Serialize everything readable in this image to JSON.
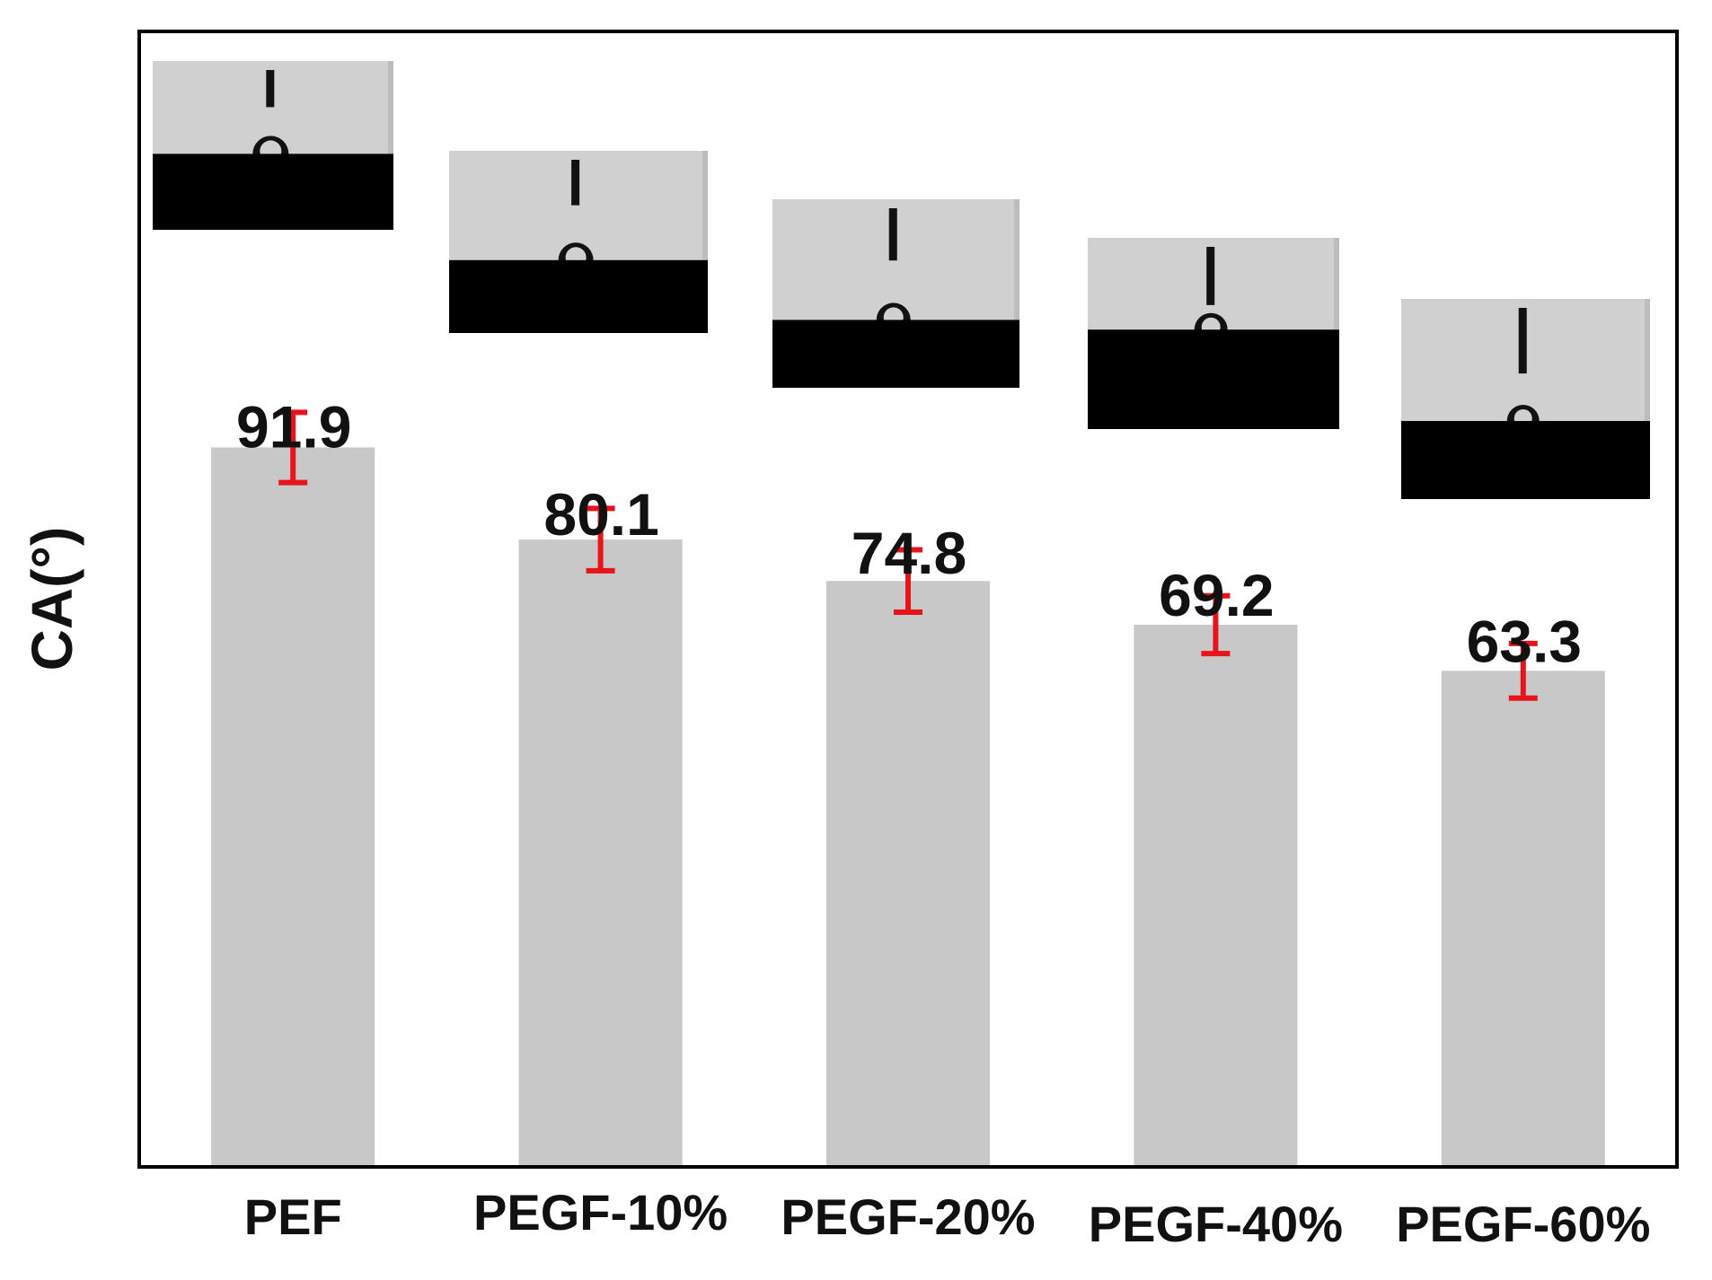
{
  "chart_data": {
    "type": "bar",
    "categories": [
      "PEF",
      "PEGF-10%",
      "PEGF-20%",
      "PEGF-40%",
      "PEGF-60%"
    ],
    "values": [
      91.9,
      80.1,
      74.8,
      69.2,
      63.3
    ],
    "error": [
      4.5,
      4.0,
      4.0,
      3.7,
      3.5
    ],
    "value_labels": [
      "91.9",
      "80.1",
      "74.8",
      "69.2",
      "63.3"
    ],
    "title": "",
    "xlabel": "",
    "ylabel": "CA(°)",
    "ylim": [
      0,
      120
    ],
    "grid": false,
    "legend": "none",
    "bar_color": "#c8c8c8",
    "error_color": "#e8141c",
    "insets": "contact-angle droplet photo above each bar"
  }
}
